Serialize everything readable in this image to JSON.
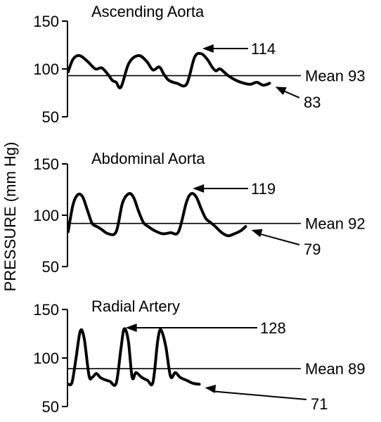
{
  "chart_data": {
    "type": "line",
    "ylabel": "PRESSURE (mm Hg)",
    "panels": [
      {
        "title": "Ascending Aorta",
        "ylim": [
          50,
          150
        ],
        "yticks": [
          50,
          100,
          150
        ],
        "x": [
          0,
          0.15,
          0.35,
          0.6,
          0.85,
          1.05,
          1.25,
          1.38,
          1.5,
          1.65,
          1.9,
          2.2,
          2.45,
          2.65,
          2.85,
          3.0,
          3.15,
          3.4,
          3.7,
          3.95,
          4.15,
          4.35,
          4.5,
          4.62,
          4.75,
          5.0,
          5.25,
          5.5,
          5.7,
          5.9,
          6.1,
          6.3
        ],
        "values": [
          97,
          110,
          114,
          108,
          100,
          101,
          94,
          88,
          86,
          81,
          106,
          114,
          108,
          99,
          102,
          94,
          88,
          85,
          84,
          112,
          116,
          110,
          102,
          98,
          100,
          93,
          88,
          85,
          84,
          86,
          83,
          85
        ],
        "mean": 93,
        "mean_label": "Mean 93",
        "peak_label": "114",
        "trough_label": "83"
      },
      {
        "title": "Abdominal Aorta",
        "ylim": [
          50,
          150
        ],
        "yticks": [
          50,
          100,
          150
        ],
        "x": [
          0,
          0.15,
          0.3,
          0.45,
          0.6,
          0.75,
          0.9,
          1.05,
          1.25,
          1.5,
          1.7,
          1.9,
          2.05,
          2.2,
          2.35,
          2.5,
          2.7,
          2.95,
          3.2,
          3.45,
          3.7,
          3.85,
          4.0,
          4.15,
          4.3,
          4.45,
          4.6,
          4.8,
          5.0,
          5.2,
          5.4,
          5.55
        ],
        "values": [
          84,
          110,
          120,
          118,
          105,
          92,
          89,
          86,
          82,
          84,
          112,
          121,
          117,
          104,
          93,
          89,
          85,
          82,
          83,
          84,
          113,
          121,
          118,
          107,
          97,
          93,
          89,
          83,
          80,
          82,
          85,
          89
        ],
        "mean": 92,
        "mean_label": "Mean 92",
        "peak_label": "119",
        "trough_label": "79"
      },
      {
        "title": "Radial Artery",
        "ylim": [
          50,
          150
        ],
        "yticks": [
          50,
          100,
          150
        ],
        "x": [
          0,
          0.12,
          0.25,
          0.38,
          0.5,
          0.65,
          0.75,
          0.88,
          1.0,
          1.12,
          1.3,
          1.5,
          1.65,
          1.75,
          1.88,
          2.0,
          2.12,
          2.3,
          2.48,
          2.65,
          2.8,
          2.9,
          3.05,
          3.2,
          3.35,
          3.5,
          3.7,
          3.9,
          4.1
        ],
        "values": [
          73,
          75,
          101,
          128,
          120,
          82,
          80,
          84,
          80,
          78,
          76,
          74,
          110,
          130,
          118,
          80,
          85,
          80,
          77,
          75,
          118,
          129,
          112,
          81,
          85,
          80,
          77,
          74,
          73
        ],
        "mean": 89,
        "mean_label": "Mean 89",
        "peak_label": "128",
        "trough_label": "71"
      }
    ]
  }
}
